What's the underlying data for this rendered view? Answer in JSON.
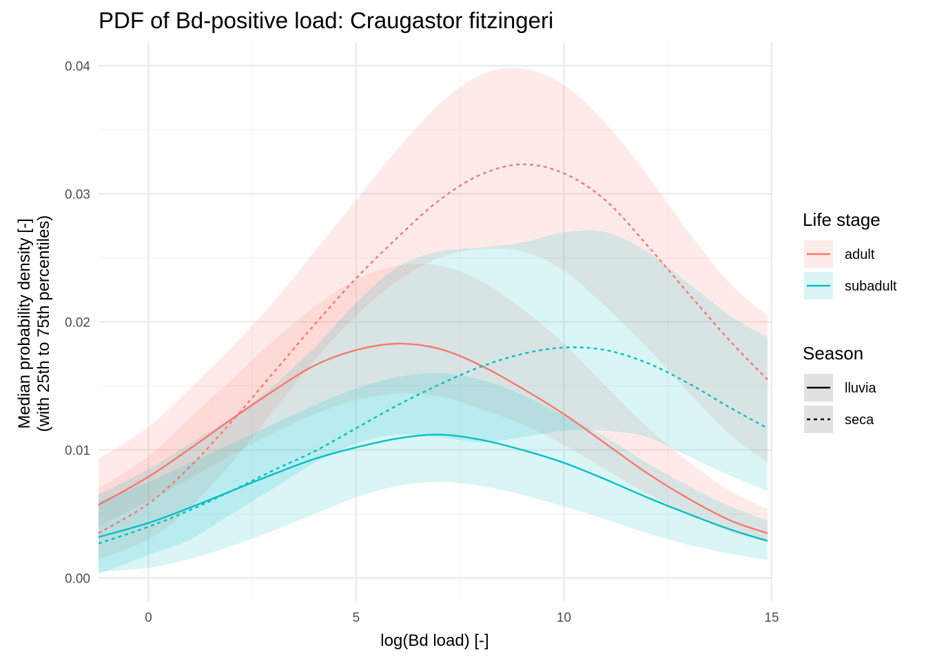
{
  "chart_data": {
    "type": "line",
    "title": "PDF of Bd-positive load: Craugastor fitzingeri",
    "xlabel": "log(Bd load) [-]",
    "ylabel": [
      "Median probability density [-]",
      "(with 25th to 75th percentiles)"
    ],
    "xlim": [
      -1.2,
      15
    ],
    "ylim": [
      -0.0018,
      0.0418
    ],
    "x_ticks": [
      0,
      5,
      10,
      15
    ],
    "x_tick_labels": [
      "0",
      "5",
      "10",
      "15"
    ],
    "y_ticks": [
      0,
      0.01,
      0.02,
      0.03,
      0.04
    ],
    "y_tick_labels": [
      "0.00",
      "0.01",
      "0.02",
      "0.03",
      "0.04"
    ],
    "grid": true,
    "x": [
      -1.2,
      0,
      1,
      2,
      3,
      4,
      5,
      6,
      7,
      8,
      9,
      10,
      11,
      12,
      13,
      14,
      14.9
    ],
    "legends": [
      {
        "title": "Life stage",
        "entries": [
          {
            "label": "adult",
            "color": "#F8766D",
            "fill": "#F8766D"
          },
          {
            "label": "subadult",
            "color": "#00BFC4",
            "fill": "#00BFC4"
          }
        ]
      },
      {
        "title": "Season",
        "entries": [
          {
            "label": "lluvia",
            "dash": "solid"
          },
          {
            "label": "seca",
            "dash": "dashed"
          }
        ]
      }
    ],
    "legend_position": "right",
    "series": [
      {
        "life_stage": "adult",
        "season": "lluvia",
        "color": "#F8766D",
        "dash": "solid",
        "median": [
          0.0057,
          0.0079,
          0.0101,
          0.0124,
          0.0146,
          0.0166,
          0.0178,
          0.0183,
          0.0179,
          0.0166,
          0.0148,
          0.0128,
          0.0105,
          0.0082,
          0.0062,
          0.0045,
          0.0035
        ],
        "p25": [
          0.004,
          0.006,
          0.0078,
          0.0096,
          0.0113,
          0.0128,
          0.0139,
          0.0144,
          0.0142,
          0.0132,
          0.012,
          0.0104,
          0.0085,
          0.0066,
          0.005,
          0.0036,
          0.0028
        ],
        "p75": [
          0.007,
          0.0095,
          0.0125,
          0.0155,
          0.0185,
          0.0212,
          0.0233,
          0.0244,
          0.0244,
          0.0232,
          0.021,
          0.0183,
          0.015,
          0.0118,
          0.0091,
          0.0068,
          0.0054
        ]
      },
      {
        "life_stage": "adult",
        "season": "seca",
        "color": "#F8766D",
        "dash": "dashed",
        "median": [
          0.0035,
          0.0058,
          0.0087,
          0.0122,
          0.016,
          0.0198,
          0.0234,
          0.0266,
          0.0295,
          0.0315,
          0.0323,
          0.0316,
          0.0295,
          0.026,
          0.0222,
          0.0185,
          0.0155
        ],
        "p25": [
          0.0015,
          0.003,
          0.0055,
          0.009,
          0.013,
          0.017,
          0.0205,
          0.0232,
          0.025,
          0.0257,
          0.0255,
          0.024,
          0.0212,
          0.018,
          0.0145,
          0.0112,
          0.009
        ],
        "p75": [
          0.0093,
          0.0118,
          0.0148,
          0.018,
          0.0215,
          0.0255,
          0.0295,
          0.0335,
          0.037,
          0.0393,
          0.0398,
          0.0385,
          0.0355,
          0.0315,
          0.027,
          0.023,
          0.0205
        ]
      },
      {
        "life_stage": "subadult",
        "season": "lluvia",
        "color": "#00BFC4",
        "dash": "solid",
        "median": [
          0.0032,
          0.0043,
          0.0055,
          0.0068,
          0.0081,
          0.0093,
          0.0102,
          0.0109,
          0.0112,
          0.0108,
          0.01,
          0.009,
          0.0077,
          0.0063,
          0.005,
          0.0038,
          0.0029
        ],
        "p25": [
          0.0005,
          0.0008,
          0.0015,
          0.0025,
          0.0037,
          0.005,
          0.0063,
          0.0072,
          0.0075,
          0.0072,
          0.0065,
          0.0056,
          0.0046,
          0.0035,
          0.0026,
          0.0019,
          0.0014
        ],
        "p75": [
          0.006,
          0.0075,
          0.009,
          0.0105,
          0.012,
          0.0135,
          0.0148,
          0.0157,
          0.016,
          0.0155,
          0.0143,
          0.0127,
          0.011,
          0.009,
          0.0072,
          0.0056,
          0.0045
        ]
      },
      {
        "life_stage": "subadult",
        "season": "seca",
        "color": "#00BFC4",
        "dash": "dashed",
        "median": [
          0.0027,
          0.004,
          0.0053,
          0.0068,
          0.0084,
          0.0099,
          0.0117,
          0.0135,
          0.0151,
          0.0165,
          0.0175,
          0.018,
          0.0178,
          0.0168,
          0.0152,
          0.0133,
          0.0117
        ],
        "p25": [
          0.0003,
          0.0018,
          0.003,
          0.005,
          0.007,
          0.009,
          0.0105,
          0.0112,
          0.011,
          0.0106,
          0.011,
          0.0115,
          0.0115,
          0.011,
          0.0095,
          0.008,
          0.0068
        ],
        "p75": [
          0.0065,
          0.0085,
          0.0105,
          0.0125,
          0.015,
          0.018,
          0.0215,
          0.0243,
          0.0255,
          0.0258,
          0.0262,
          0.027,
          0.027,
          0.0255,
          0.023,
          0.0205,
          0.0188
        ]
      }
    ]
  }
}
